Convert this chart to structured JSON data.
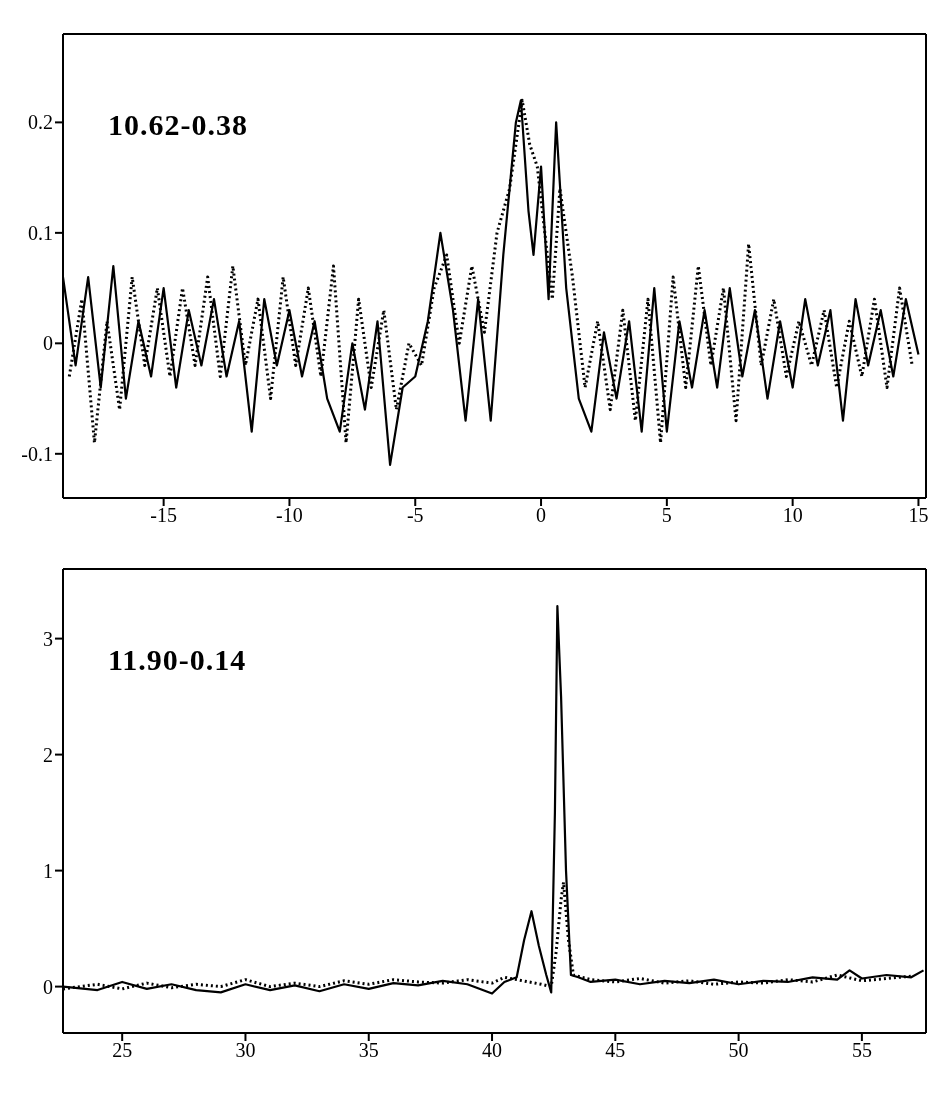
{
  "chart_data": [
    {
      "type": "line",
      "annotations": [
        "10.62-0.38"
      ],
      "xlim": [
        -19,
        15.3
      ],
      "ylim": [
        -0.14,
        0.28
      ],
      "xticks": [
        -15,
        -10,
        -5,
        0,
        5,
        10,
        15
      ],
      "yticks": [
        -0.1,
        0,
        0.1,
        0.2
      ],
      "series": [
        {
          "color": "#000000",
          "line_style": "solid",
          "x": [
            -19,
            -18.5,
            -18,
            -17.5,
            -17,
            -16.5,
            -16,
            -15.5,
            -15,
            -14.5,
            -14,
            -13.5,
            -13,
            -12.5,
            -12,
            -11.5,
            -11,
            -10.5,
            -10,
            -9.5,
            -9,
            -8.5,
            -8,
            -7.5,
            -7,
            -6.5,
            -6,
            -5.5,
            -5,
            -4.5,
            -4,
            -3.5,
            -3,
            -2.5,
            -2,
            -1.5,
            -1,
            -0.8,
            -0.5,
            -0.3,
            0,
            0.3,
            0.6,
            1,
            1.5,
            2,
            2.5,
            3,
            3.5,
            4,
            4.5,
            5,
            5.5,
            6,
            6.5,
            7,
            7.5,
            8,
            8.5,
            9,
            9.5,
            10,
            10.5,
            11,
            11.5,
            12,
            12.5,
            13,
            13.5,
            14,
            14.5,
            15
          ],
          "values": [
            0.06,
            -0.02,
            0.06,
            -0.04,
            0.07,
            -0.05,
            0.02,
            -0.03,
            0.05,
            -0.04,
            0.03,
            -0.02,
            0.04,
            -0.03,
            0.02,
            -0.08,
            0.04,
            -0.02,
            0.03,
            -0.03,
            0.02,
            -0.05,
            -0.08,
            0,
            -0.06,
            0.02,
            -0.11,
            -0.04,
            -0.03,
            0.02,
            0.1,
            0.03,
            -0.07,
            0.04,
            -0.07,
            0.08,
            0.2,
            0.22,
            0.12,
            0.08,
            0.16,
            0.04,
            0.2,
            0.05,
            -0.05,
            -0.08,
            0.01,
            -0.05,
            0.02,
            -0.08,
            0.05,
            -0.08,
            0.02,
            -0.04,
            0.03,
            -0.04,
            0.05,
            -0.03,
            0.03,
            -0.05,
            0.02,
            -0.04,
            0.04,
            -0.02,
            0.03,
            -0.07,
            0.04,
            -0.02,
            0.03,
            -0.03,
            0.04,
            -0.01
          ]
        },
        {
          "color": "#000000",
          "line_style": "dotted",
          "x": [
            -18.75,
            -18.25,
            -17.75,
            -17.25,
            -16.75,
            -16.25,
            -15.75,
            -15.25,
            -14.75,
            -14.25,
            -13.75,
            -13.25,
            -12.75,
            -12.25,
            -11.75,
            -11.25,
            -10.75,
            -10.25,
            -9.75,
            -9.25,
            -8.75,
            -8.25,
            -7.75,
            -7.25,
            -6.75,
            -6.25,
            -5.75,
            -5.25,
            -4.75,
            -4.25,
            -3.75,
            -3.25,
            -2.75,
            -2.25,
            -1.75,
            -1.25,
            -0.75,
            -0.45,
            -0.15,
            0.15,
            0.45,
            0.75,
            1.25,
            1.75,
            2.25,
            2.75,
            3.25,
            3.75,
            4.25,
            4.75,
            5.25,
            5.75,
            6.25,
            6.75,
            7.25,
            7.75,
            8.25,
            8.75,
            9.25,
            9.75,
            10.25,
            10.75,
            11.25,
            11.75,
            12.25,
            12.75,
            13.25,
            13.75,
            14.25,
            14.75
          ],
          "values": [
            -0.03,
            0.04,
            -0.09,
            0.02,
            -0.06,
            0.06,
            -0.02,
            0.05,
            -0.03,
            0.05,
            -0.02,
            0.06,
            -0.03,
            0.07,
            -0.02,
            0.04,
            -0.05,
            0.06,
            -0.02,
            0.05,
            -0.03,
            0.07,
            -0.09,
            0.04,
            -0.04,
            0.03,
            -0.06,
            0,
            -0.02,
            0.05,
            0.08,
            0,
            0.07,
            0.01,
            0.1,
            0.14,
            0.22,
            0.18,
            0.16,
            0.1,
            0.04,
            0.14,
            0.06,
            -0.04,
            0.02,
            -0.06,
            0.03,
            -0.07,
            0.04,
            -0.09,
            0.06,
            -0.04,
            0.07,
            -0.02,
            0.05,
            -0.07,
            0.09,
            -0.02,
            0.04,
            -0.03,
            0.02,
            -0.02,
            0.03,
            -0.04,
            0.02,
            -0.03,
            0.04,
            -0.04,
            0.05,
            -0.02
          ]
        }
      ]
    },
    {
      "type": "line",
      "annotations": [
        "11.90-0.14"
      ],
      "xlim": [
        22.6,
        57.6
      ],
      "ylim": [
        -0.4,
        3.6
      ],
      "xticks": [
        25,
        30,
        35,
        40,
        45,
        50,
        55
      ],
      "yticks": [
        0,
        1,
        2,
        3
      ],
      "series": [
        {
          "color": "#000000",
          "line_style": "solid",
          "x": [
            22.6,
            24,
            25,
            26,
            27,
            28,
            29,
            30,
            31,
            32,
            33,
            34,
            35,
            36,
            37,
            38,
            39,
            40,
            40.5,
            41,
            41.3,
            41.6,
            41.9,
            42.2,
            42.4,
            42.55,
            42.65,
            42.8,
            43,
            43.2,
            43.5,
            44,
            45,
            46,
            47,
            48,
            49,
            50,
            51,
            52,
            53,
            54,
            54.5,
            55,
            56,
            57,
            57.5
          ],
          "values": [
            0,
            -0.03,
            0.04,
            -0.02,
            0.02,
            -0.03,
            -0.05,
            0.02,
            -0.03,
            0.01,
            -0.04,
            0.02,
            -0.02,
            0.03,
            0.01,
            0.05,
            0.02,
            -0.06,
            0.04,
            0.08,
            0.4,
            0.65,
            0.35,
            0.1,
            -0.05,
            1.5,
            3.28,
            2.5,
            1,
            0.1,
            0.08,
            0.04,
            0.06,
            0.02,
            0.05,
            0.03,
            0.06,
            0.02,
            0.05,
            0.04,
            0.08,
            0.06,
            0.14,
            0.07,
            0.1,
            0.08,
            0.14
          ]
        },
        {
          "color": "#000000",
          "line_style": "dotted",
          "x": [
            22.6,
            24,
            25,
            26,
            27,
            28,
            29,
            30,
            31,
            32,
            33,
            34,
            35,
            36,
            37,
            38,
            39,
            40,
            40.5,
            41,
            41.5,
            42,
            42.4,
            42.6,
            42.8,
            42.9,
            43.1,
            43.3,
            44,
            45,
            46,
            47,
            48,
            49,
            50,
            51,
            52,
            53,
            54,
            55,
            56,
            57
          ],
          "values": [
            -0.02,
            0.02,
            -0.02,
            0.03,
            -0.01,
            0.02,
            0,
            0.06,
            0,
            0.03,
            0,
            0.05,
            0.02,
            0.06,
            0.04,
            0.03,
            0.06,
            0.03,
            0.08,
            0.06,
            0.04,
            0.02,
            0,
            0.3,
            0.75,
            0.9,
            0.4,
            0.1,
            0.06,
            0.04,
            0.07,
            0.03,
            0.05,
            0.02,
            0.04,
            0.03,
            0.06,
            0.04,
            0.1,
            0.05,
            0.07,
            0.09
          ]
        }
      ]
    }
  ]
}
